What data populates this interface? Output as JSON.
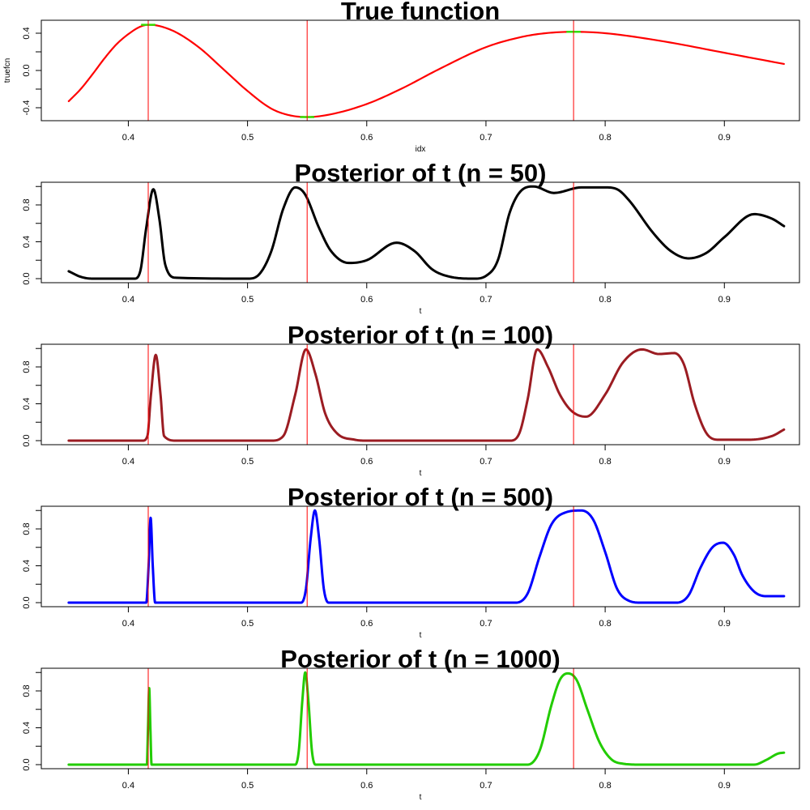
{
  "chart_data": [
    {
      "type": "line",
      "title": "True function",
      "xlabel": "idx",
      "ylabel": "truefcn",
      "xlim": [
        0.327,
        0.963
      ],
      "ylim": [
        -0.539,
        0.539
      ],
      "x_ticks": [
        0.4,
        0.5,
        0.6,
        0.7,
        0.8,
        0.9
      ],
      "x_tick_labels": [
        "0.4",
        "0.5",
        "0.6",
        "0.7",
        "0.8",
        "0.9"
      ],
      "y_ticks": [
        -0.4,
        -0.2,
        0.0,
        0.2,
        0.4
      ],
      "y_tick_labels": [
        "-0.4",
        "",
        "0.0",
        "",
        "0.4"
      ],
      "color": "#ff0000",
      "vline_color": "#ff0000",
      "vlines": [
        0.4167,
        0.55,
        0.7735
      ],
      "highlight_color": "#33dd00",
      "highlights": [
        [
          0.4167,
          0.49
        ],
        [
          0.55,
          -0.5
        ],
        [
          0.7735,
          0.415
        ]
      ],
      "points": [
        [
          0.35,
          -0.33
        ],
        [
          0.36,
          -0.2
        ],
        [
          0.37,
          -0.04
        ],
        [
          0.38,
          0.13
        ],
        [
          0.39,
          0.28
        ],
        [
          0.4,
          0.39
        ],
        [
          0.41,
          0.47
        ],
        [
          0.4167,
          0.49
        ],
        [
          0.425,
          0.48
        ],
        [
          0.44,
          0.41
        ],
        [
          0.46,
          0.24
        ],
        [
          0.48,
          0.01
        ],
        [
          0.5,
          -0.22
        ],
        [
          0.52,
          -0.41
        ],
        [
          0.535,
          -0.48
        ],
        [
          0.55,
          -0.5
        ],
        [
          0.57,
          -0.47
        ],
        [
          0.6,
          -0.36
        ],
        [
          0.63,
          -0.19
        ],
        [
          0.66,
          0.01
        ],
        [
          0.7,
          0.25
        ],
        [
          0.73,
          0.36
        ],
        [
          0.75,
          0.4
        ],
        [
          0.7735,
          0.415
        ],
        [
          0.8,
          0.4
        ],
        [
          0.85,
          0.31
        ],
        [
          0.9,
          0.19
        ],
        [
          0.95,
          0.07
        ]
      ]
    },
    {
      "type": "line",
      "title": "Posterior of t (n = 50)",
      "xlabel": "t",
      "ylabel": "",
      "xlim": [
        0.327,
        0.963
      ],
      "ylim": [
        -0.044,
        1.046
      ],
      "x_ticks": [
        0.4,
        0.5,
        0.6,
        0.7,
        0.8,
        0.9
      ],
      "x_tick_labels": [
        "0.4",
        "0.5",
        "0.6",
        "0.7",
        "0.8",
        "0.9"
      ],
      "y_ticks": [
        0.0,
        0.2,
        0.4,
        0.6,
        0.8,
        1.0
      ],
      "y_tick_labels": [
        "0.0",
        "",
        "0.4",
        "",
        "0.8",
        ""
      ],
      "color": "#000000",
      "vline_color": "#ff0000",
      "vlines": [
        0.4167,
        0.55,
        0.7735
      ],
      "points": [
        [
          0.35,
          0.08
        ],
        [
          0.36,
          0.02
        ],
        [
          0.37,
          0.0
        ],
        [
          0.405,
          0.0
        ],
        [
          0.41,
          0.08
        ],
        [
          0.415,
          0.55
        ],
        [
          0.421,
          0.97
        ],
        [
          0.426,
          0.65
        ],
        [
          0.431,
          0.15
        ],
        [
          0.44,
          0.01
        ],
        [
          0.5,
          0.0
        ],
        [
          0.51,
          0.05
        ],
        [
          0.52,
          0.3
        ],
        [
          0.53,
          0.76
        ],
        [
          0.54,
          0.99
        ],
        [
          0.548,
          0.92
        ],
        [
          0.56,
          0.55
        ],
        [
          0.57,
          0.3
        ],
        [
          0.585,
          0.17
        ],
        [
          0.6,
          0.2
        ],
        [
          0.625,
          0.39
        ],
        [
          0.64,
          0.3
        ],
        [
          0.655,
          0.1
        ],
        [
          0.67,
          0.02
        ],
        [
          0.69,
          0.0
        ],
        [
          0.7,
          0.03
        ],
        [
          0.71,
          0.2
        ],
        [
          0.72,
          0.72
        ],
        [
          0.73,
          0.96
        ],
        [
          0.74,
          1.0
        ],
        [
          0.757,
          0.93
        ],
        [
          0.78,
          0.99
        ],
        [
          0.8,
          0.99
        ],
        [
          0.81,
          0.97
        ],
        [
          0.82,
          0.85
        ],
        [
          0.84,
          0.5
        ],
        [
          0.855,
          0.3
        ],
        [
          0.87,
          0.22
        ],
        [
          0.885,
          0.28
        ],
        [
          0.9,
          0.45
        ],
        [
          0.925,
          0.7
        ],
        [
          0.94,
          0.65
        ],
        [
          0.95,
          0.57
        ]
      ]
    },
    {
      "type": "line",
      "title": "Posterior of t (n = 100)",
      "xlabel": "t",
      "ylabel": "",
      "xlim": [
        0.327,
        0.963
      ],
      "ylim": [
        -0.044,
        1.046
      ],
      "x_ticks": [
        0.4,
        0.5,
        0.6,
        0.7,
        0.8,
        0.9
      ],
      "x_tick_labels": [
        "0.4",
        "0.5",
        "0.6",
        "0.7",
        "0.8",
        "0.9"
      ],
      "y_ticks": [
        0.0,
        0.2,
        0.4,
        0.6,
        0.8,
        1.0
      ],
      "y_tick_labels": [
        "0.0",
        "",
        "0.4",
        "",
        "0.8",
        ""
      ],
      "color": "#9b1c22",
      "vline_color": "#ff0000",
      "vlines": [
        0.4167,
        0.55,
        0.7735
      ],
      "points": [
        [
          0.35,
          0.0
        ],
        [
          0.412,
          0.0
        ],
        [
          0.416,
          0.05
        ],
        [
          0.419,
          0.5
        ],
        [
          0.423,
          0.93
        ],
        [
          0.427,
          0.5
        ],
        [
          0.43,
          0.05
        ],
        [
          0.44,
          0.0
        ],
        [
          0.52,
          0.0
        ],
        [
          0.53,
          0.05
        ],
        [
          0.54,
          0.5
        ],
        [
          0.549,
          0.99
        ],
        [
          0.557,
          0.72
        ],
        [
          0.565,
          0.3
        ],
        [
          0.575,
          0.08
        ],
        [
          0.59,
          0.01
        ],
        [
          0.6,
          0.0
        ],
        [
          0.72,
          0.0
        ],
        [
          0.728,
          0.08
        ],
        [
          0.735,
          0.45
        ],
        [
          0.743,
          0.99
        ],
        [
          0.752,
          0.8
        ],
        [
          0.762,
          0.5
        ],
        [
          0.772,
          0.32
        ],
        [
          0.784,
          0.26
        ],
        [
          0.8,
          0.5
        ],
        [
          0.815,
          0.85
        ],
        [
          0.831,
          0.99
        ],
        [
          0.845,
          0.94
        ],
        [
          0.858,
          0.95
        ],
        [
          0.866,
          0.83
        ],
        [
          0.875,
          0.4
        ],
        [
          0.885,
          0.08
        ],
        [
          0.895,
          0.01
        ],
        [
          0.92,
          0.01
        ],
        [
          0.94,
          0.05
        ],
        [
          0.95,
          0.12
        ]
      ]
    },
    {
      "type": "line",
      "title": "Posterior of t (n = 500)",
      "xlabel": "t",
      "ylabel": "",
      "xlim": [
        0.327,
        0.963
      ],
      "ylim": [
        -0.044,
        1.046
      ],
      "x_ticks": [
        0.4,
        0.5,
        0.6,
        0.7,
        0.8,
        0.9
      ],
      "x_tick_labels": [
        "0.4",
        "0.5",
        "0.6",
        "0.7",
        "0.8",
        "0.9"
      ],
      "y_ticks": [
        0.0,
        0.2,
        0.4,
        0.6,
        0.8,
        1.0
      ],
      "y_tick_labels": [
        "0.0",
        "",
        "0.4",
        "",
        "0.8",
        ""
      ],
      "color": "#0000ff",
      "vline_color": "#ff0000",
      "vlines": [
        0.4167,
        0.55,
        0.7735
      ],
      "points": [
        [
          0.35,
          0.0
        ],
        [
          0.415,
          0.0
        ],
        [
          0.417,
          0.4
        ],
        [
          0.4187,
          0.92
        ],
        [
          0.4205,
          0.4
        ],
        [
          0.4225,
          0.0
        ],
        [
          0.545,
          0.0
        ],
        [
          0.549,
          0.15
        ],
        [
          0.553,
          0.7
        ],
        [
          0.5565,
          1.0
        ],
        [
          0.56,
          0.7
        ],
        [
          0.564,
          0.15
        ],
        [
          0.568,
          0.0
        ],
        [
          0.725,
          0.0
        ],
        [
          0.735,
          0.1
        ],
        [
          0.745,
          0.5
        ],
        [
          0.755,
          0.85
        ],
        [
          0.767,
          0.98
        ],
        [
          0.78,
          1.0
        ],
        [
          0.79,
          0.9
        ],
        [
          0.8,
          0.55
        ],
        [
          0.81,
          0.15
        ],
        [
          0.82,
          0.02
        ],
        [
          0.83,
          0.0
        ],
        [
          0.86,
          0.0
        ],
        [
          0.87,
          0.08
        ],
        [
          0.88,
          0.38
        ],
        [
          0.89,
          0.6
        ],
        [
          0.899,
          0.65
        ],
        [
          0.908,
          0.52
        ],
        [
          0.915,
          0.3
        ],
        [
          0.925,
          0.12
        ],
        [
          0.935,
          0.07
        ],
        [
          0.95,
          0.07
        ]
      ]
    },
    {
      "type": "line",
      "title": "Posterior of t (n = 1000)",
      "xlabel": "t",
      "ylabel": "",
      "xlim": [
        0.327,
        0.963
      ],
      "ylim": [
        -0.044,
        1.046
      ],
      "x_ticks": [
        0.4,
        0.5,
        0.6,
        0.7,
        0.8,
        0.9
      ],
      "x_tick_labels": [
        "0.4",
        "0.5",
        "0.6",
        "0.7",
        "0.8",
        "0.9"
      ],
      "y_ticks": [
        0.0,
        0.2,
        0.4,
        0.6,
        0.8,
        1.0
      ],
      "y_tick_labels": [
        "0.0",
        "",
        "0.4",
        "",
        "0.8",
        ""
      ],
      "color": "#22cc00",
      "vline_color": "#ff0000",
      "vlines": [
        0.4167,
        0.55,
        0.7735
      ],
      "points": [
        [
          0.35,
          0.0
        ],
        [
          0.4155,
          0.0
        ],
        [
          0.4165,
          0.4
        ],
        [
          0.4175,
          0.83
        ],
        [
          0.4185,
          0.4
        ],
        [
          0.4195,
          0.0
        ],
        [
          0.54,
          0.0
        ],
        [
          0.543,
          0.15
        ],
        [
          0.546,
          0.7
        ],
        [
          0.5484,
          1.0
        ],
        [
          0.551,
          0.7
        ],
        [
          0.554,
          0.15
        ],
        [
          0.557,
          0.0
        ],
        [
          0.735,
          0.0
        ],
        [
          0.745,
          0.15
        ],
        [
          0.755,
          0.65
        ],
        [
          0.762,
          0.92
        ],
        [
          0.7686,
          0.99
        ],
        [
          0.776,
          0.92
        ],
        [
          0.785,
          0.6
        ],
        [
          0.795,
          0.25
        ],
        [
          0.805,
          0.06
        ],
        [
          0.815,
          0.01
        ],
        [
          0.83,
          0.0
        ],
        [
          0.925,
          0.0
        ],
        [
          0.935,
          0.05
        ],
        [
          0.945,
          0.12
        ],
        [
          0.95,
          0.13
        ]
      ]
    }
  ]
}
